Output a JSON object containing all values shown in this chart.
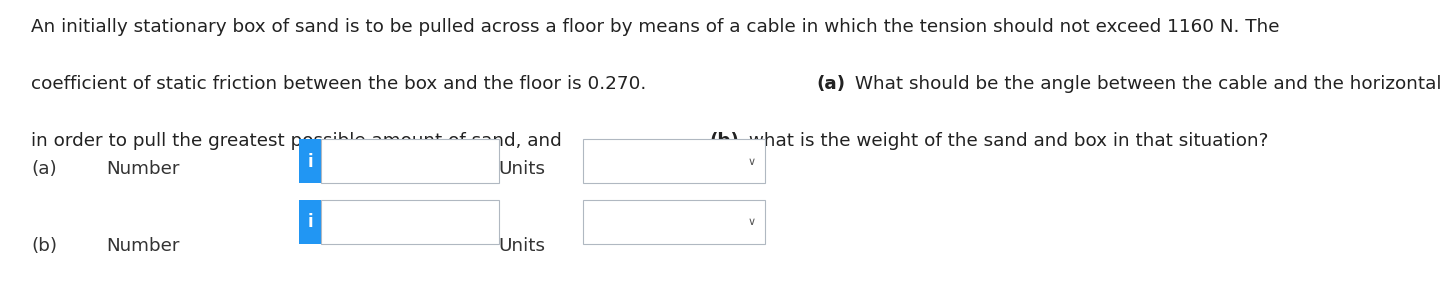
{
  "background_color": "#ffffff",
  "line1": "An initially stationary box of sand is to be pulled across a floor by means of a cable in which the tension should not exceed 1160 N. The",
  "line2_pre": "coefficient of static friction between the box and the floor is 0.270. ",
  "line2_bold": "(a)",
  "line2_post": " What should be the angle between the cable and the horizontal",
  "line3_pre": "in order to pull the greatest possible amount of sand, and ",
  "line3_bold": "(b)",
  "line3_post": " what is the weight of the sand and box in that situation?",
  "label_a": "(a)",
  "label_b": "(b)",
  "number_label": "Number",
  "units_label": "Units",
  "info_button_color": "#2196F3",
  "info_button_text": "i",
  "input_box_color": "#ffffff",
  "input_box_border": "#b0b8c1",
  "units_box_border": "#b0b8c1",
  "font_size_text": 13.2,
  "font_size_label": 13.2,
  "font_size_info": 12,
  "text_color": "#222222",
  "label_color": "#333333",
  "arrow_color": "#555555"
}
